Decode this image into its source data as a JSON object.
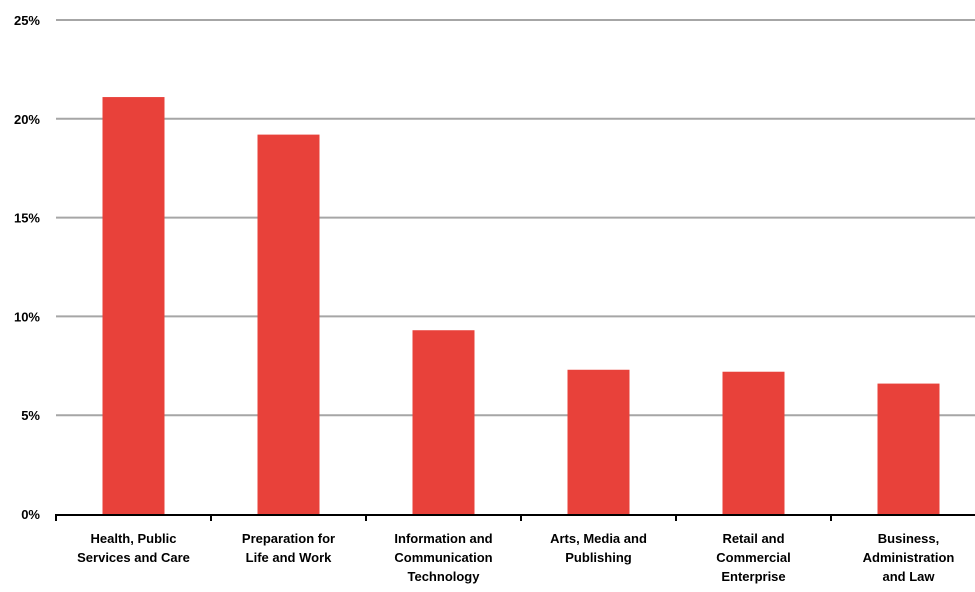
{
  "chart_data": {
    "type": "bar",
    "title": "",
    "xlabel": "",
    "ylabel": "",
    "categories": [
      [
        "Health, Public",
        "Services and Care"
      ],
      [
        "Preparation for",
        "Life and Work"
      ],
      [
        "Information and",
        "Communication",
        "Technology"
      ],
      [
        "Arts, Media and",
        "Publishing"
      ],
      [
        "Retail and",
        "Commercial",
        "Enterprise"
      ],
      [
        "Business,",
        "Administration",
        "and Law"
      ]
    ],
    "values": [
      21.1,
      19.2,
      9.3,
      7.3,
      7.2,
      6.6
    ],
    "ylim": [
      0,
      25
    ],
    "yticks": [
      0,
      5,
      10,
      15,
      20,
      25
    ],
    "ytick_labels": [
      "0%",
      "5%",
      "10%",
      "15%",
      "20%",
      "25%"
    ],
    "grid": true,
    "colors": {
      "bar": "#e8413a",
      "grid": "#a6a6a6",
      "axis": "#000000"
    }
  }
}
